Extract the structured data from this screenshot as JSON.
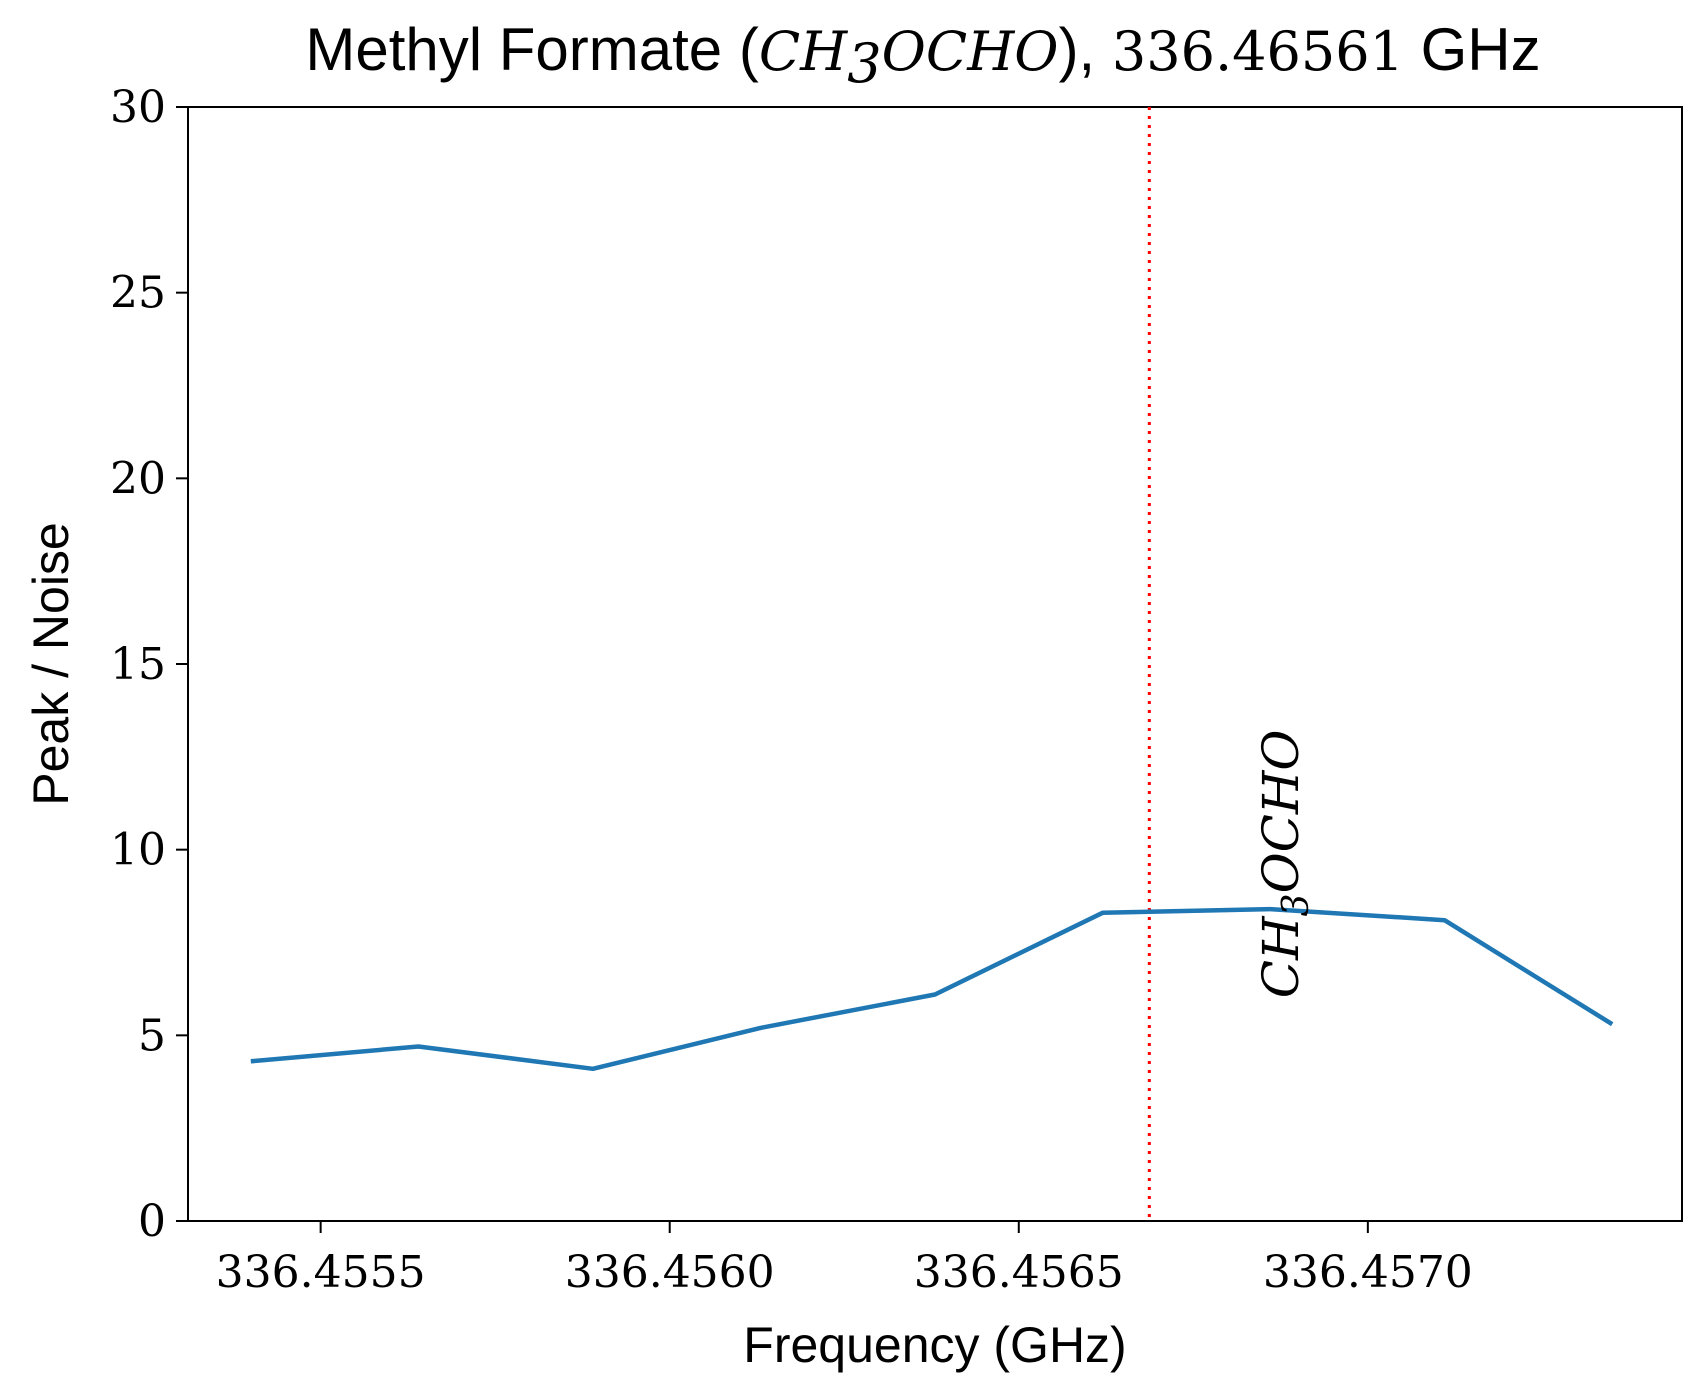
{
  "chart_data": {
    "type": "line",
    "title": {
      "prefix": "Methyl Formate (",
      "formula_main": "CH",
      "formula_sub": "3",
      "formula_rest": "OCHO",
      "mid": "), ",
      "frequency": "336.46561",
      "suffix": " GHz"
    },
    "xlabel": "Frequency (GHz)",
    "ylabel": "Peak / Noise",
    "xlim": [
      336.45531,
      336.45745
    ],
    "ylim": [
      0,
      30
    ],
    "xticks": [
      336.4555,
      336.456,
      336.4565,
      336.457
    ],
    "xtick_labels": [
      "336.4555",
      "336.4560",
      "336.4565",
      "336.4570"
    ],
    "yticks": [
      0,
      5,
      10,
      15,
      20,
      25,
      30
    ],
    "ytick_labels": [
      "0",
      "5",
      "10",
      "15",
      "20",
      "25",
      "30"
    ],
    "grid": false,
    "series": [
      {
        "color": "#1f77b4",
        "x": [
          336.4554,
          336.45564,
          336.45589,
          336.45613,
          336.45638,
          336.45662,
          336.45686,
          336.45711,
          336.45735
        ],
        "y": [
          4.3,
          4.7,
          4.1,
          5.2,
          6.1,
          8.3,
          8.4,
          8.1,
          5.3
        ]
      }
    ],
    "reference_line": {
      "x": 336.456687,
      "color": "#ff0000",
      "style": "dotted"
    },
    "annotation": {
      "text_main": "CH",
      "text_sub": "3",
      "text_rest": "OCHO",
      "x": 336.4569,
      "y": 6.0,
      "rotation": -90
    }
  }
}
